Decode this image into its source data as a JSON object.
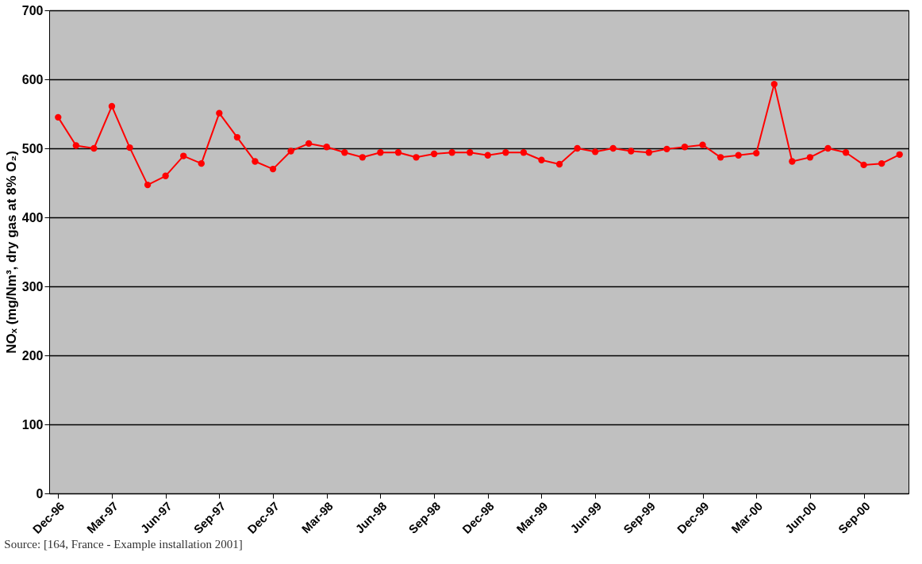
{
  "chart_data": {
    "type": "line",
    "ylabel": "NOₓ (mg/Nm³, dry gas at 8% O₂)",
    "annotations": [
      "Source: [164, France - Example installation 2001]"
    ],
    "categories": [
      "Dec-96",
      null,
      null,
      "Mar-97",
      null,
      null,
      "Jun-97",
      null,
      null,
      "Sep-97",
      null,
      null,
      "Dec-97",
      null,
      null,
      "Mar-98",
      null,
      null,
      "Jun-98",
      null,
      null,
      "Sep-98",
      null,
      null,
      "Dec-98",
      null,
      null,
      "Mar-99",
      null,
      null,
      "Jun-99",
      null,
      null,
      "Sep-99",
      null,
      null,
      "Dec-99",
      null,
      null,
      "Mar-00",
      null,
      null,
      "Jun-00",
      null,
      null,
      "Sep-00",
      null,
      null
    ],
    "series": [
      {
        "color": "#ff0000",
        "values": [
          545,
          504,
          500,
          561,
          501,
          447,
          460,
          489,
          478,
          551,
          516,
          481,
          470,
          496,
          507,
          502,
          494,
          487,
          494,
          494,
          487,
          492,
          494,
          494,
          490,
          494,
          494,
          483,
          477,
          500,
          495,
          500,
          496,
          494,
          499,
          502,
          505,
          487,
          490,
          493,
          593,
          481,
          487,
          500,
          494,
          476,
          478,
          491
        ]
      }
    ],
    "ylim": [
      0,
      700
    ],
    "yticks": [
      0,
      100,
      200,
      300,
      400,
      500,
      600,
      700
    ],
    "grid": "y",
    "legend": false,
    "marker": "circle",
    "line_style": "solid"
  }
}
